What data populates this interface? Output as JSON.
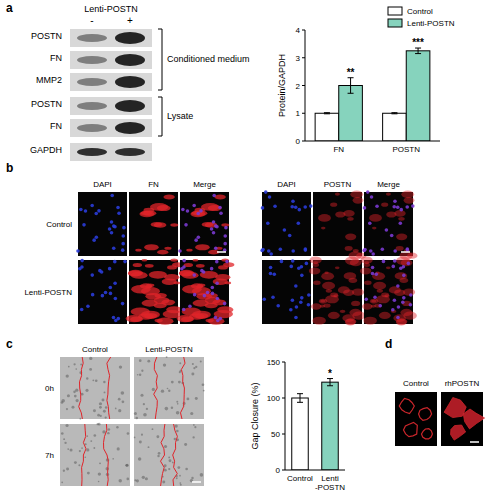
{
  "figure": {
    "panel_labels": [
      "a",
      "b",
      "c",
      "d"
    ],
    "a": {
      "treatment": "Lenti-POSTN",
      "lanes": [
        "-",
        "+"
      ],
      "groups": [
        {
          "label": "Conditioned medium",
          "rows": [
            "POSTN",
            "FN",
            "MMP2"
          ]
        },
        {
          "label": "Lysate",
          "rows": [
            "POSTN",
            "FN"
          ]
        }
      ],
      "loading_control": "GAPDH"
    },
    "b": {
      "rows": [
        "Control",
        "Lenti-POSTN"
      ],
      "groups": [
        [
          "DAPI",
          "FN",
          "Merge"
        ],
        [
          "DAPI",
          "POSTN",
          "Merge"
        ]
      ]
    },
    "c": {
      "columns": [
        "Control",
        "Lenti-POSTN"
      ],
      "rows": [
        "0h",
        "7h"
      ]
    },
    "d": {
      "columns": [
        "Control",
        "rhPOSTN"
      ]
    }
  },
  "chart_data": [
    {
      "type": "bar",
      "y_label": "Protein/GAPDH",
      "categories": [
        "FN",
        "POSTN"
      ],
      "series": [
        {
          "name": "Control",
          "color": "#ffffff",
          "values": [
            1,
            1
          ],
          "errors": [
            0.02,
            0.02
          ]
        },
        {
          "name": "Lenti-POSTN",
          "color": "#86d3bd",
          "values": [
            2.0,
            3.25
          ],
          "errors": [
            0.28,
            0.1
          ],
          "significance": [
            "**",
            "***"
          ]
        }
      ],
      "ylim": [
        0,
        4
      ],
      "yticks": [
        0,
        1,
        2,
        3,
        4
      ],
      "legend": "top"
    },
    {
      "type": "bar",
      "y_label": "Gap Closure (%)",
      "categories": [
        "Control",
        "Lenti\n-POSTN"
      ],
      "values": [
        100,
        122
      ],
      "errors": [
        6,
        5
      ],
      "colors": [
        "#ffffff",
        "#86d3bd"
      ],
      "significance": [
        null,
        "*"
      ],
      "ylim": [
        0,
        150
      ],
      "yticks": [
        0,
        50,
        100,
        150
      ]
    }
  ]
}
